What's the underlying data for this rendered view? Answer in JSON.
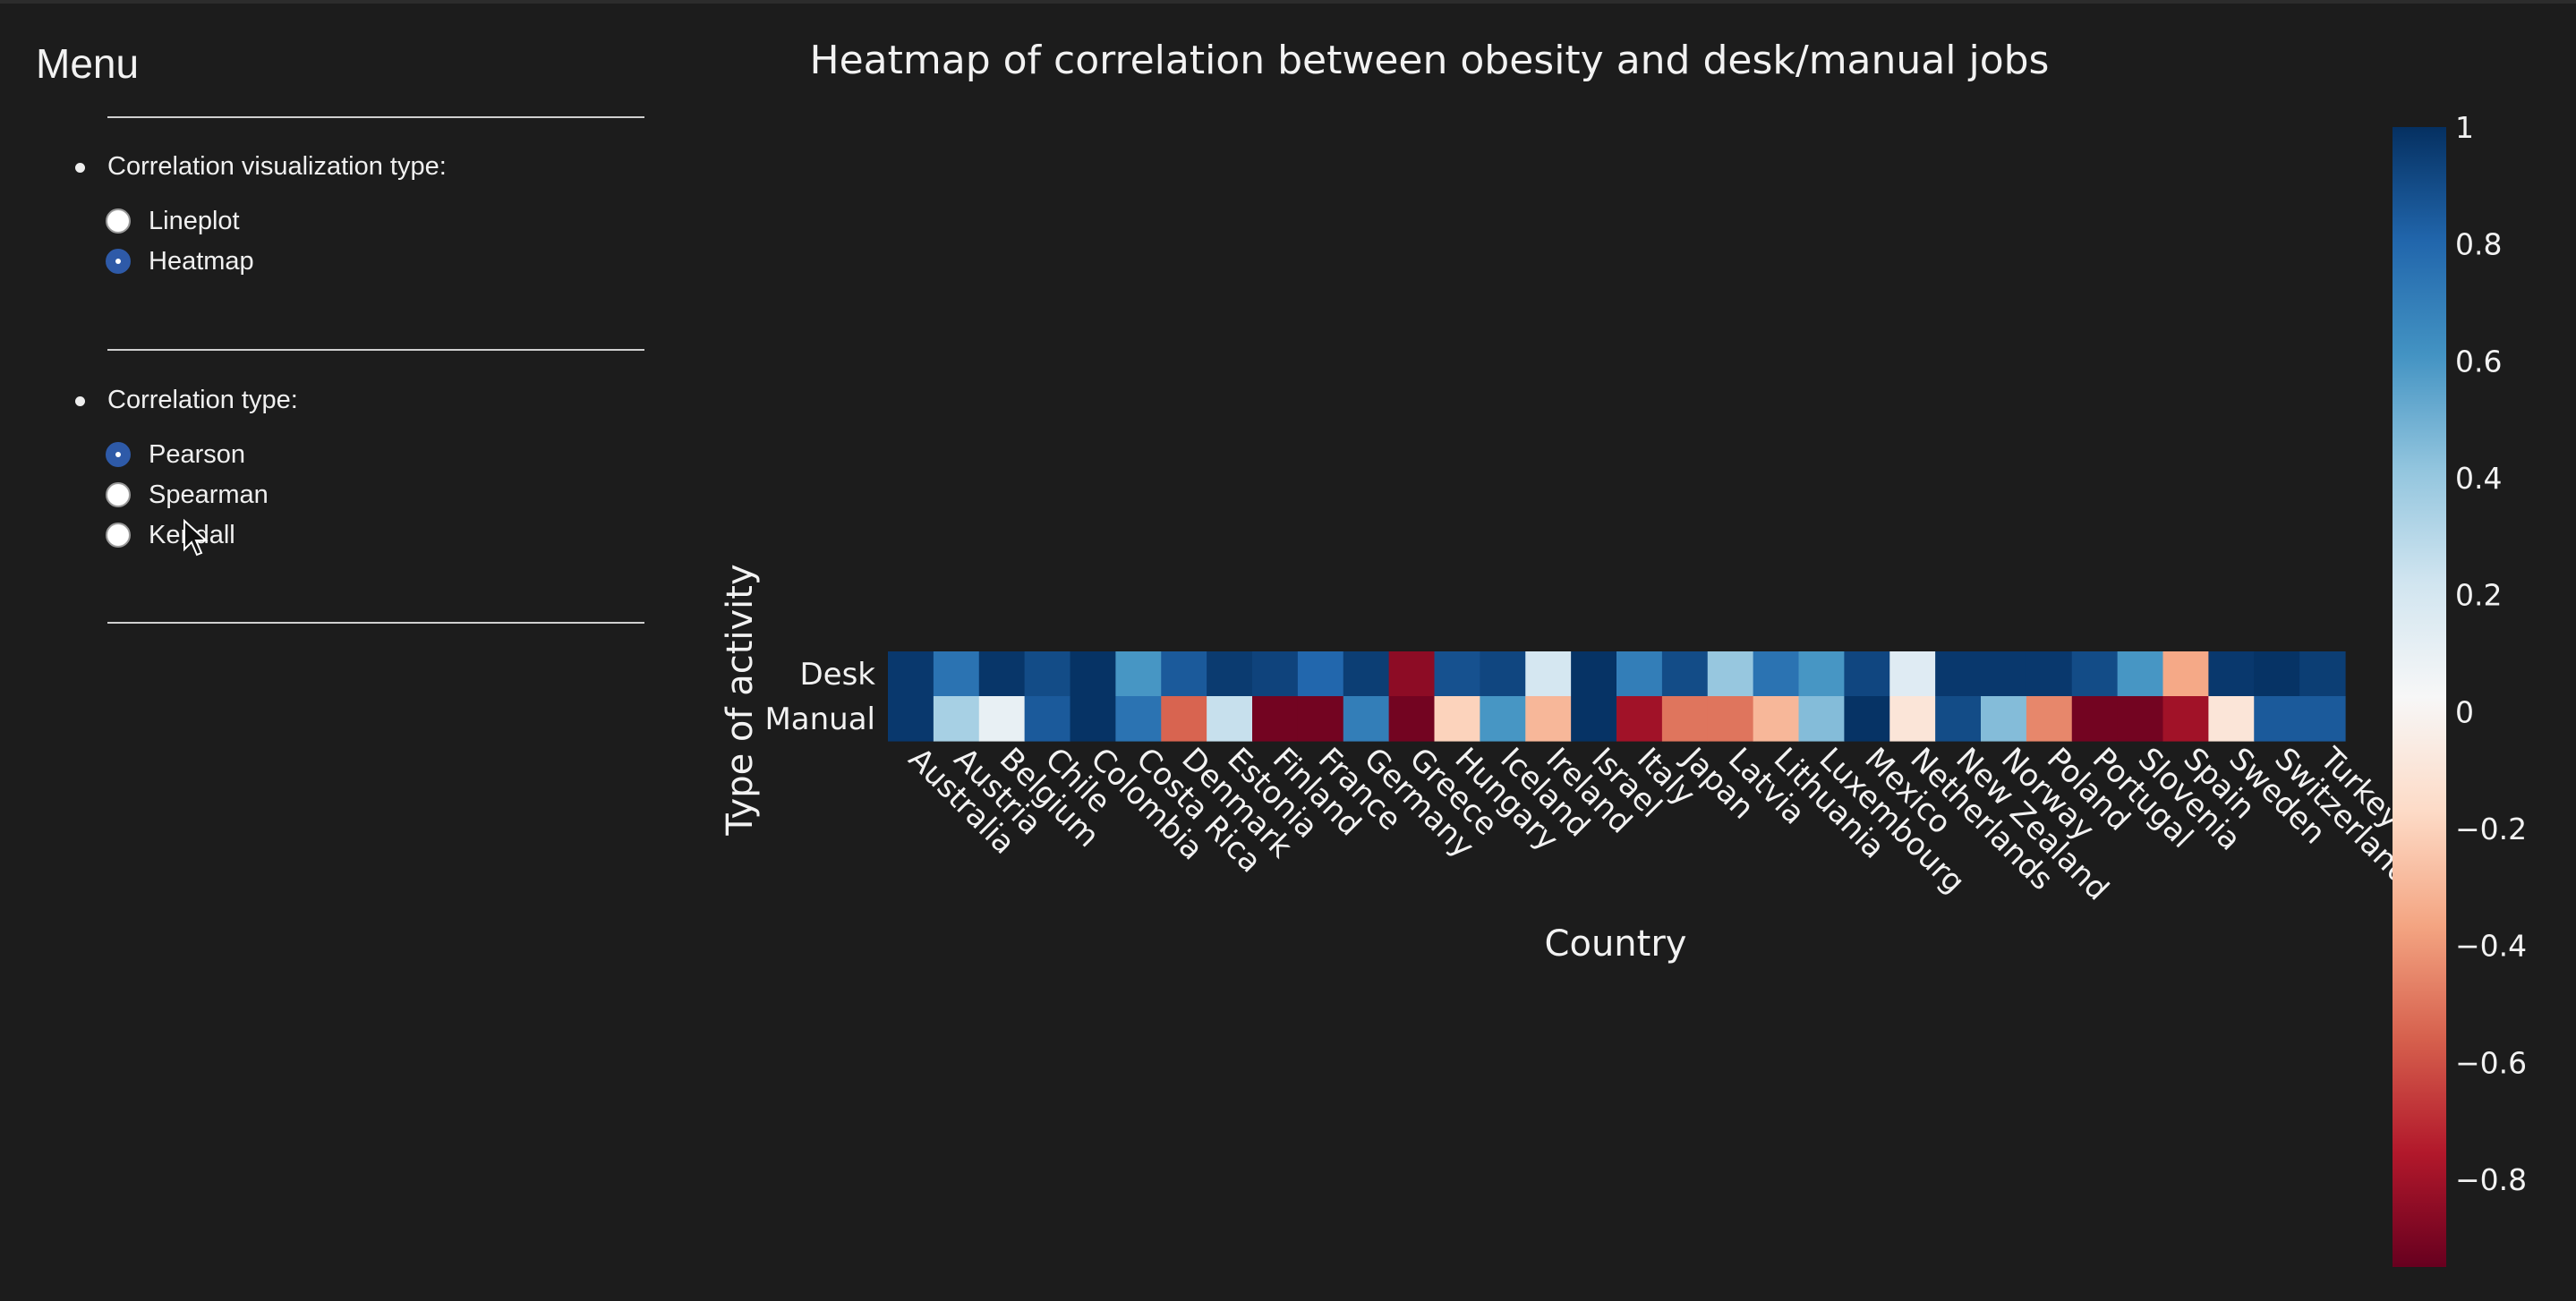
{
  "sidebar": {
    "title": "Menu",
    "viz_section": {
      "label": "Correlation visualization type:",
      "options": [
        {
          "label": "Lineplot",
          "checked": false
        },
        {
          "label": "Heatmap",
          "checked": true
        }
      ]
    },
    "corr_section": {
      "label": "Correlation type:",
      "options": [
        {
          "label": "Pearson",
          "checked": true
        },
        {
          "label": "Spearman",
          "checked": false
        },
        {
          "label": "Kendall",
          "checked": false
        }
      ]
    }
  },
  "chart_data": {
    "type": "heatmap",
    "title": "Heatmap of correlation between obesity and desk/manual jobs",
    "xlabel": "Country",
    "ylabel": "Type of activity",
    "x": [
      "Australia",
      "Austria",
      "Belgium",
      "Chile",
      "Colombia",
      "Costa Rica",
      "Denmark",
      "Estonia",
      "Finland",
      "France",
      "Germany",
      "Greece",
      "Hungary",
      "Iceland",
      "Ireland",
      "Israel",
      "Italy",
      "Japan",
      "Latvia",
      "Lithuania",
      "Luxembourg",
      "Mexico",
      "Netherlands",
      "New Zealand",
      "Norway",
      "Poland",
      "Portugal",
      "Slovenia",
      "Spain",
      "Sweden",
      "Switzerland",
      "Turkey"
    ],
    "y": [
      "Desk",
      "Manual"
    ],
    "z": [
      [
        0.97,
        0.75,
        0.98,
        0.9,
        0.99,
        0.6,
        0.85,
        0.96,
        0.93,
        0.8,
        0.95,
        -0.85,
        0.88,
        0.92,
        0.2,
        0.99,
        0.7,
        0.9,
        0.4,
        0.75,
        0.6,
        0.92,
        0.15,
        0.97,
        0.97,
        0.97,
        0.9,
        0.6,
        -0.35,
        0.97,
        0.99,
        0.95
      ],
      [
        0.97,
        0.35,
        0.1,
        0.85,
        0.99,
        0.75,
        -0.55,
        0.25,
        -0.92,
        -0.92,
        0.7,
        -0.92,
        -0.2,
        0.6,
        -0.3,
        0.99,
        -0.8,
        -0.5,
        -0.5,
        -0.3,
        0.45,
        0.99,
        -0.1,
        0.9,
        0.45,
        -0.45,
        -0.92,
        -0.92,
        -0.8,
        -0.1,
        0.85,
        0.85
      ]
    ],
    "colorscale": "RdBu",
    "zmin": -0.95,
    "zmax": 1,
    "colorbar_ticks": [
      1,
      0.8,
      0.6,
      0.4,
      0.2,
      0,
      -0.2,
      -0.4,
      -0.6,
      -0.8
    ],
    "colorbar_tick_labels": [
      "1",
      "0.8",
      "0.6",
      "0.4",
      "0.2",
      "0",
      "−0.2",
      "−0.4",
      "−0.6",
      "−0.8"
    ]
  }
}
